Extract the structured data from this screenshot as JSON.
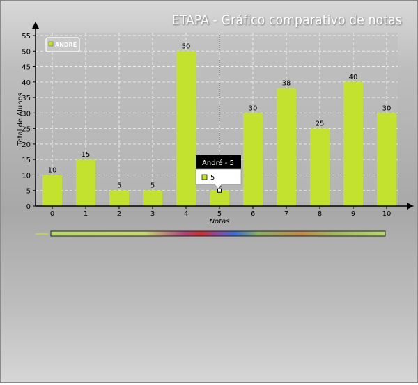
{
  "title": "ETAPA - Gráfico comparativo de notas",
  "legend_label": "ANDRÉ",
  "tooltip": {
    "header": "André - 5",
    "value": "5"
  },
  "colors": {
    "bar": "#c3e230",
    "axis": "#000000",
    "plot_bg": "#bebebe",
    "grid": "#ececec"
  },
  "chart_data": {
    "type": "bar",
    "title": "ETAPA - Gráfico comparativo de notas",
    "xlabel": "Notas",
    "ylabel": "Total de Alunos",
    "categories": [
      "0",
      "1",
      "2",
      "3",
      "4",
      "5",
      "6",
      "7",
      "8",
      "9",
      "10"
    ],
    "series": [
      {
        "name": "ANDRÉ",
        "values": [
          10,
          15,
          5,
          5,
          50,
          5,
          30,
          38,
          25,
          40,
          30
        ]
      }
    ],
    "ylim": [
      0,
      55
    ],
    "yticks": [
      0,
      5,
      10,
      15,
      20,
      25,
      30,
      35,
      40,
      45,
      50,
      55
    ],
    "grid": true,
    "legend_position": "top-left"
  }
}
